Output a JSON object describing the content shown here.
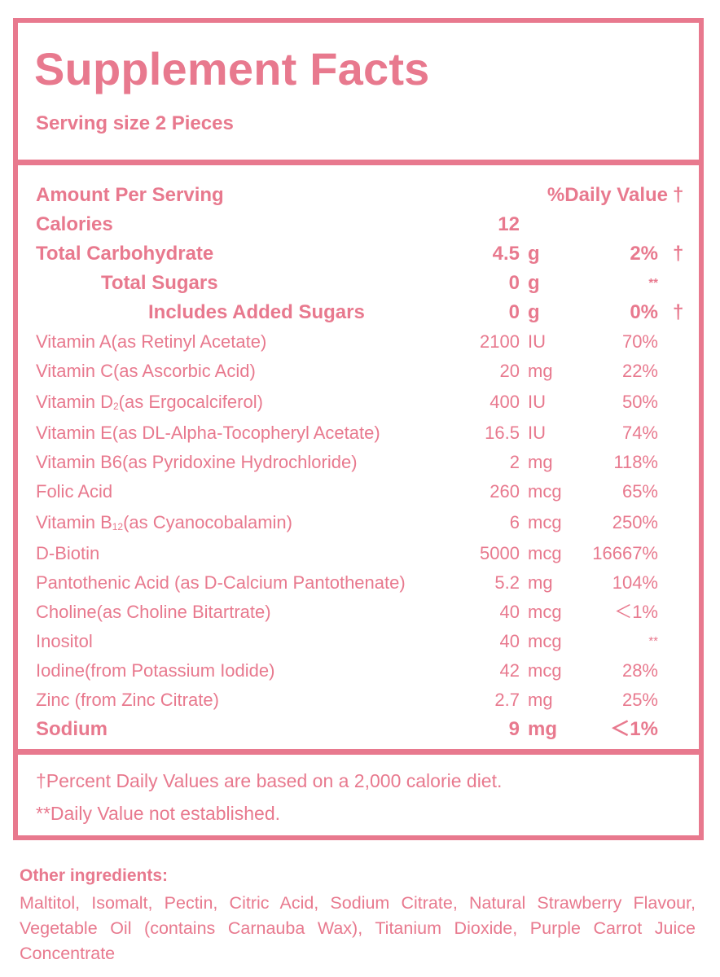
{
  "label": {
    "title": "Supplement Facts",
    "serving_size": "Serving size 2 Pieces",
    "header_amount": "Amount Per Serving",
    "header_dv": "%Daily Value",
    "header_dagger": "†",
    "rows": [
      {
        "name": "Calories",
        "amount": "12",
        "unit": "",
        "dv": "",
        "dagger": ""
      },
      {
        "name": "Total Carbohydrate",
        "amount": "4.5",
        "unit": "g",
        "dv": "2%",
        "dagger": "†"
      },
      {
        "name": "Total Sugars",
        "amount": "0",
        "unit": "g",
        "dv": "**",
        "dagger": ""
      },
      {
        "name": "Includes Added Sugars",
        "amount": "0",
        "unit": "g",
        "dv": "0%",
        "dagger": "†"
      },
      {
        "name": "Vitamin A(as Retinyl Acetate)",
        "amount": "2100",
        "unit": "IU",
        "dv": "70%",
        "dagger": ""
      },
      {
        "name": "Vitamin C(as Ascorbic Acid)",
        "amount": "20",
        "unit": "mg",
        "dv": "22%",
        "dagger": ""
      },
      {
        "name_pre": "Vitamin D",
        "name_sub": "2",
        "name_post": "(as Ergocalciferol)",
        "amount": "400",
        "unit": "IU",
        "dv": "50%",
        "dagger": ""
      },
      {
        "name": "Vitamin E(as DL-Alpha-Tocopheryl Acetate)",
        "amount": "16.5",
        "unit": "IU",
        "dv": "74%",
        "dagger": ""
      },
      {
        "name": "Vitamin B6(as Pyridoxine Hydrochloride)",
        "amount": "2",
        "unit": "mg",
        "dv": "118%",
        "dagger": ""
      },
      {
        "name": "Folic Acid",
        "amount": "260",
        "unit": "mcg",
        "dv": "65%",
        "dagger": ""
      },
      {
        "name_pre": "Vitamin B",
        "name_sub": "12",
        "name_post": "(as Cyanocobalamin)",
        "amount": "6",
        "unit": "mcg",
        "dv": "250%",
        "dagger": ""
      },
      {
        "name": "D-Biotin",
        "amount": "5000",
        "unit": "mcg",
        "dv": "16667%",
        "dagger": ""
      },
      {
        "name": "Pantothenic Acid (as D-Calcium Pantothenate)",
        "amount": "5.2",
        "unit": "mg",
        "dv": "104%",
        "dagger": ""
      },
      {
        "name": "Choline(as Choline Bitartrate)",
        "amount": "40",
        "unit": "mcg",
        "dv": "＜1%",
        "dagger": ""
      },
      {
        "name": "Inositol",
        "amount": "40",
        "unit": "mcg",
        "dv": "**",
        "dagger": ""
      },
      {
        "name": "Iodine(from Potassium Iodide)",
        "amount": "42",
        "unit": "mcg",
        "dv": "28%",
        "dagger": ""
      },
      {
        "name": "Zinc (from Zinc Citrate)",
        "amount": "2.7",
        "unit": "mg",
        "dv": "25%",
        "dagger": ""
      },
      {
        "name": "Sodium",
        "amount": "9",
        "unit": "mg",
        "dv": "＜1%",
        "dagger": ""
      }
    ],
    "footnote_dagger": "†Percent Daily Values are based on a 2,000 calorie diet.",
    "footnote_stars": "**Daily Value not established."
  },
  "other_ingredients": {
    "title": "Other ingredients:",
    "text": "Maltitol, Isomalt, Pectin, Citric Acid, Sodium Citrate, Natural Strawberry Flavour, Vegetable Oil (contains Carnauba Wax), Titanium Dioxide, Purple Carrot Juice Concentrate"
  },
  "colors": {
    "accent": "#e8798e",
    "background": "#ffffff"
  }
}
